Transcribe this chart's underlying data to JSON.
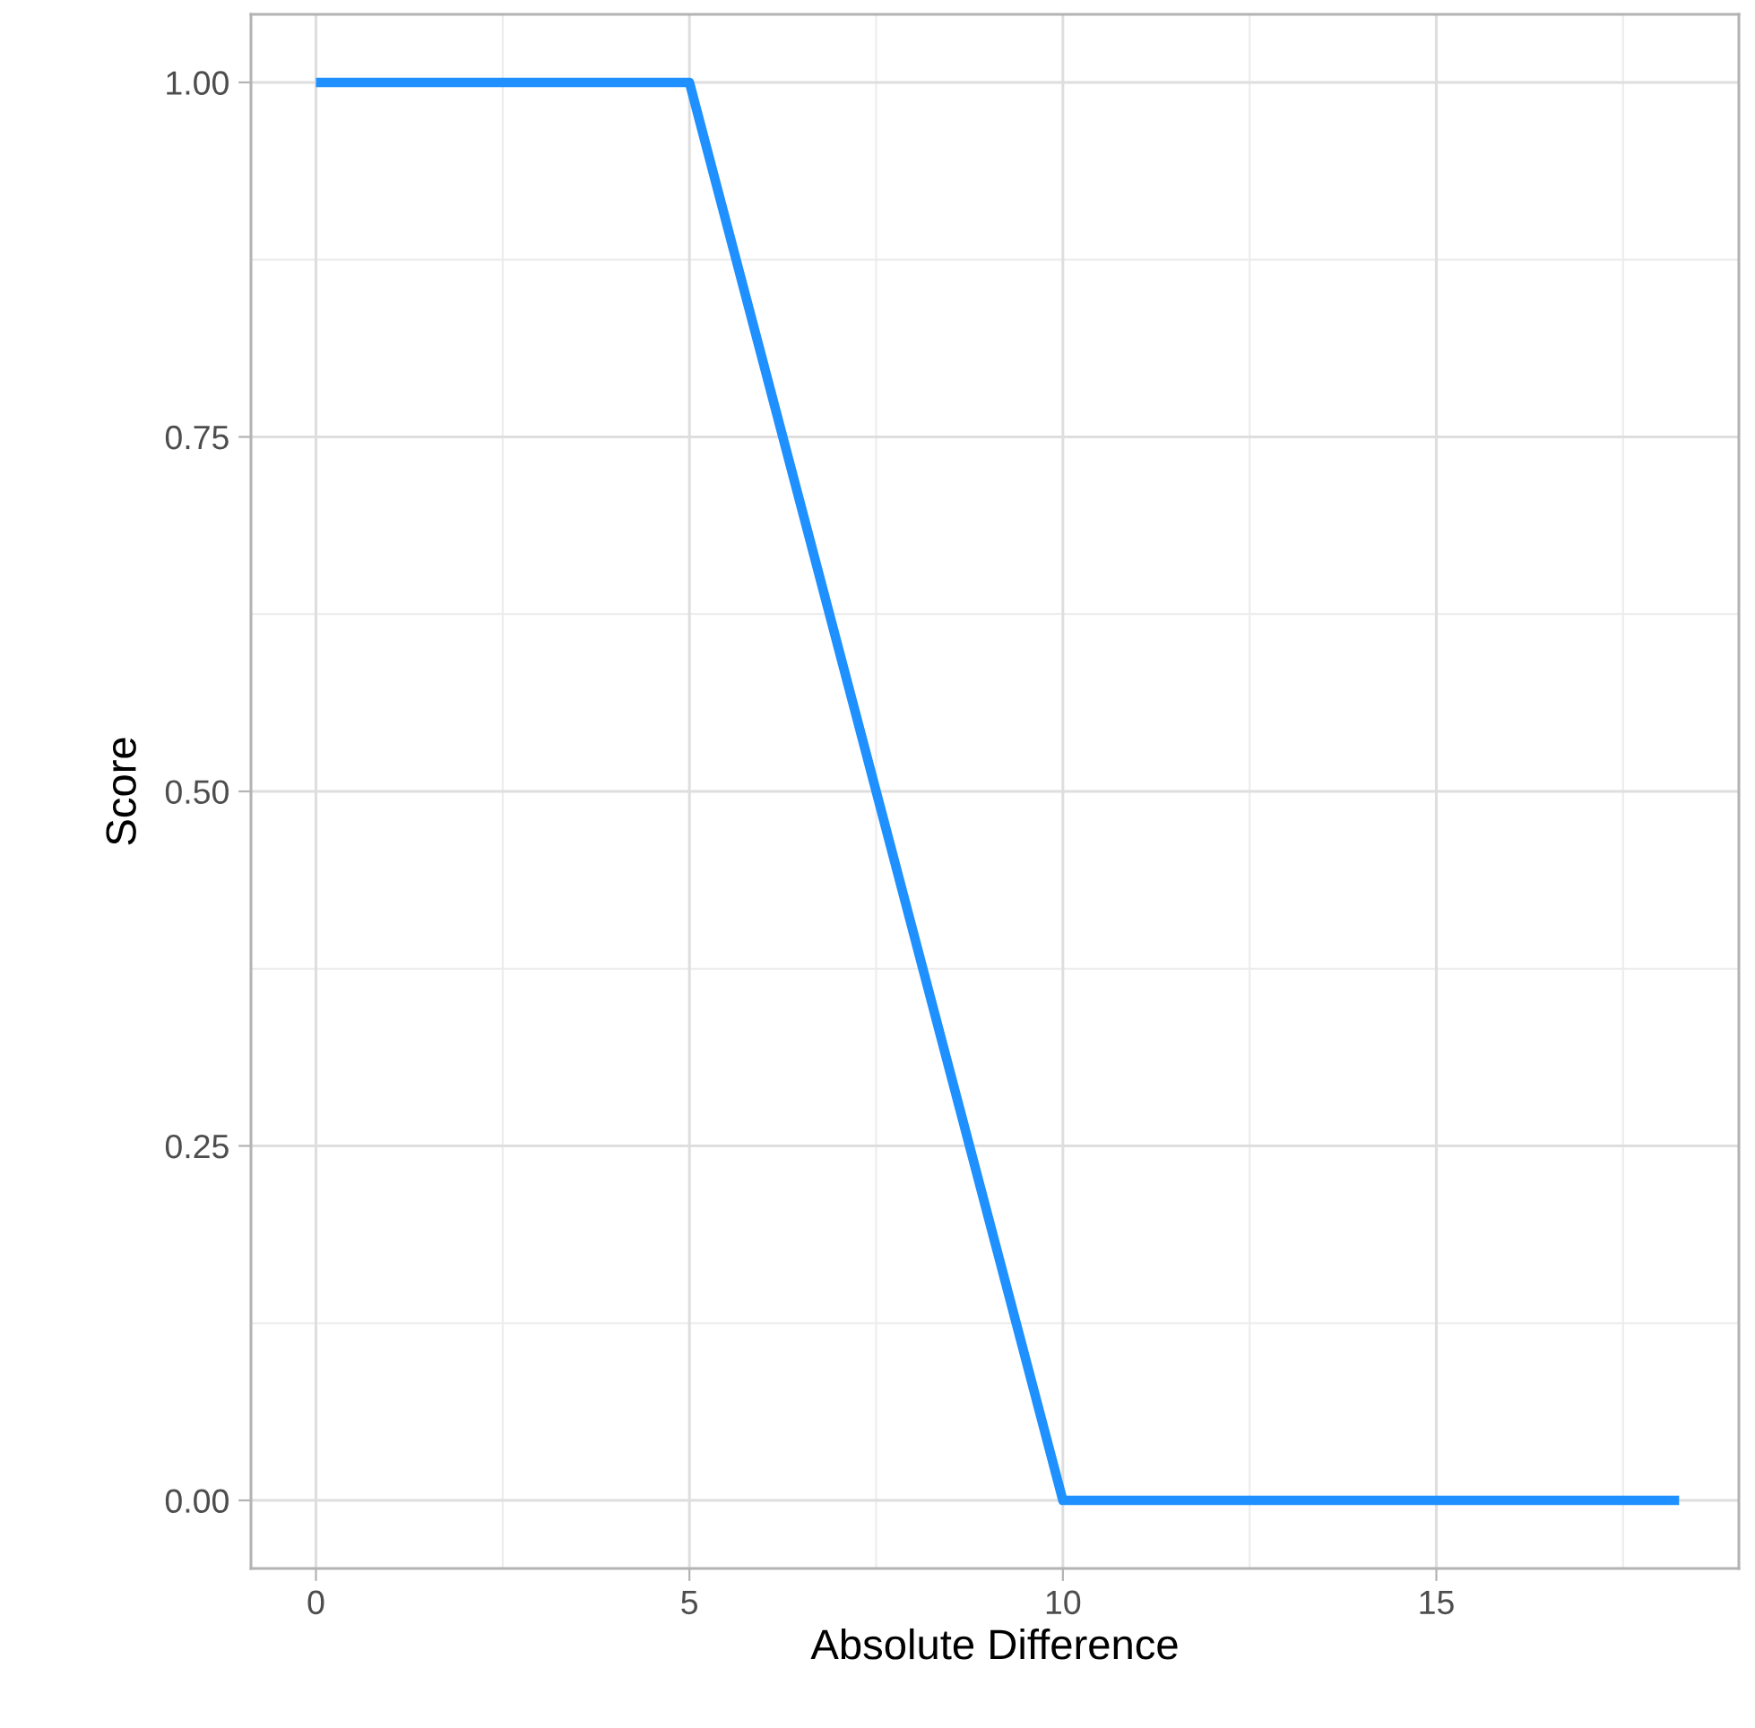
{
  "chart_data": {
    "type": "line",
    "xlabel": "Absolute Difference",
    "ylabel": "Score",
    "x": [
      0,
      5,
      10,
      18.25
    ],
    "series": [
      {
        "color": "#1e90ff",
        "values": [
          1,
          1,
          0,
          0
        ]
      }
    ],
    "xlim": [
      -0.87,
      19.05
    ],
    "ylim": [
      -0.048,
      1.048
    ],
    "xticks": [
      0,
      5,
      10,
      15
    ],
    "yticks": [
      {
        "value": 0,
        "label": "0.00"
      },
      {
        "value": 0.25,
        "label": "0.25"
      },
      {
        "value": 0.5,
        "label": "0.50"
      },
      {
        "value": 0.75,
        "label": "0.75"
      },
      {
        "value": 1,
        "label": "1.00"
      }
    ],
    "grid": true,
    "marker": "none",
    "line_style": "solid"
  }
}
